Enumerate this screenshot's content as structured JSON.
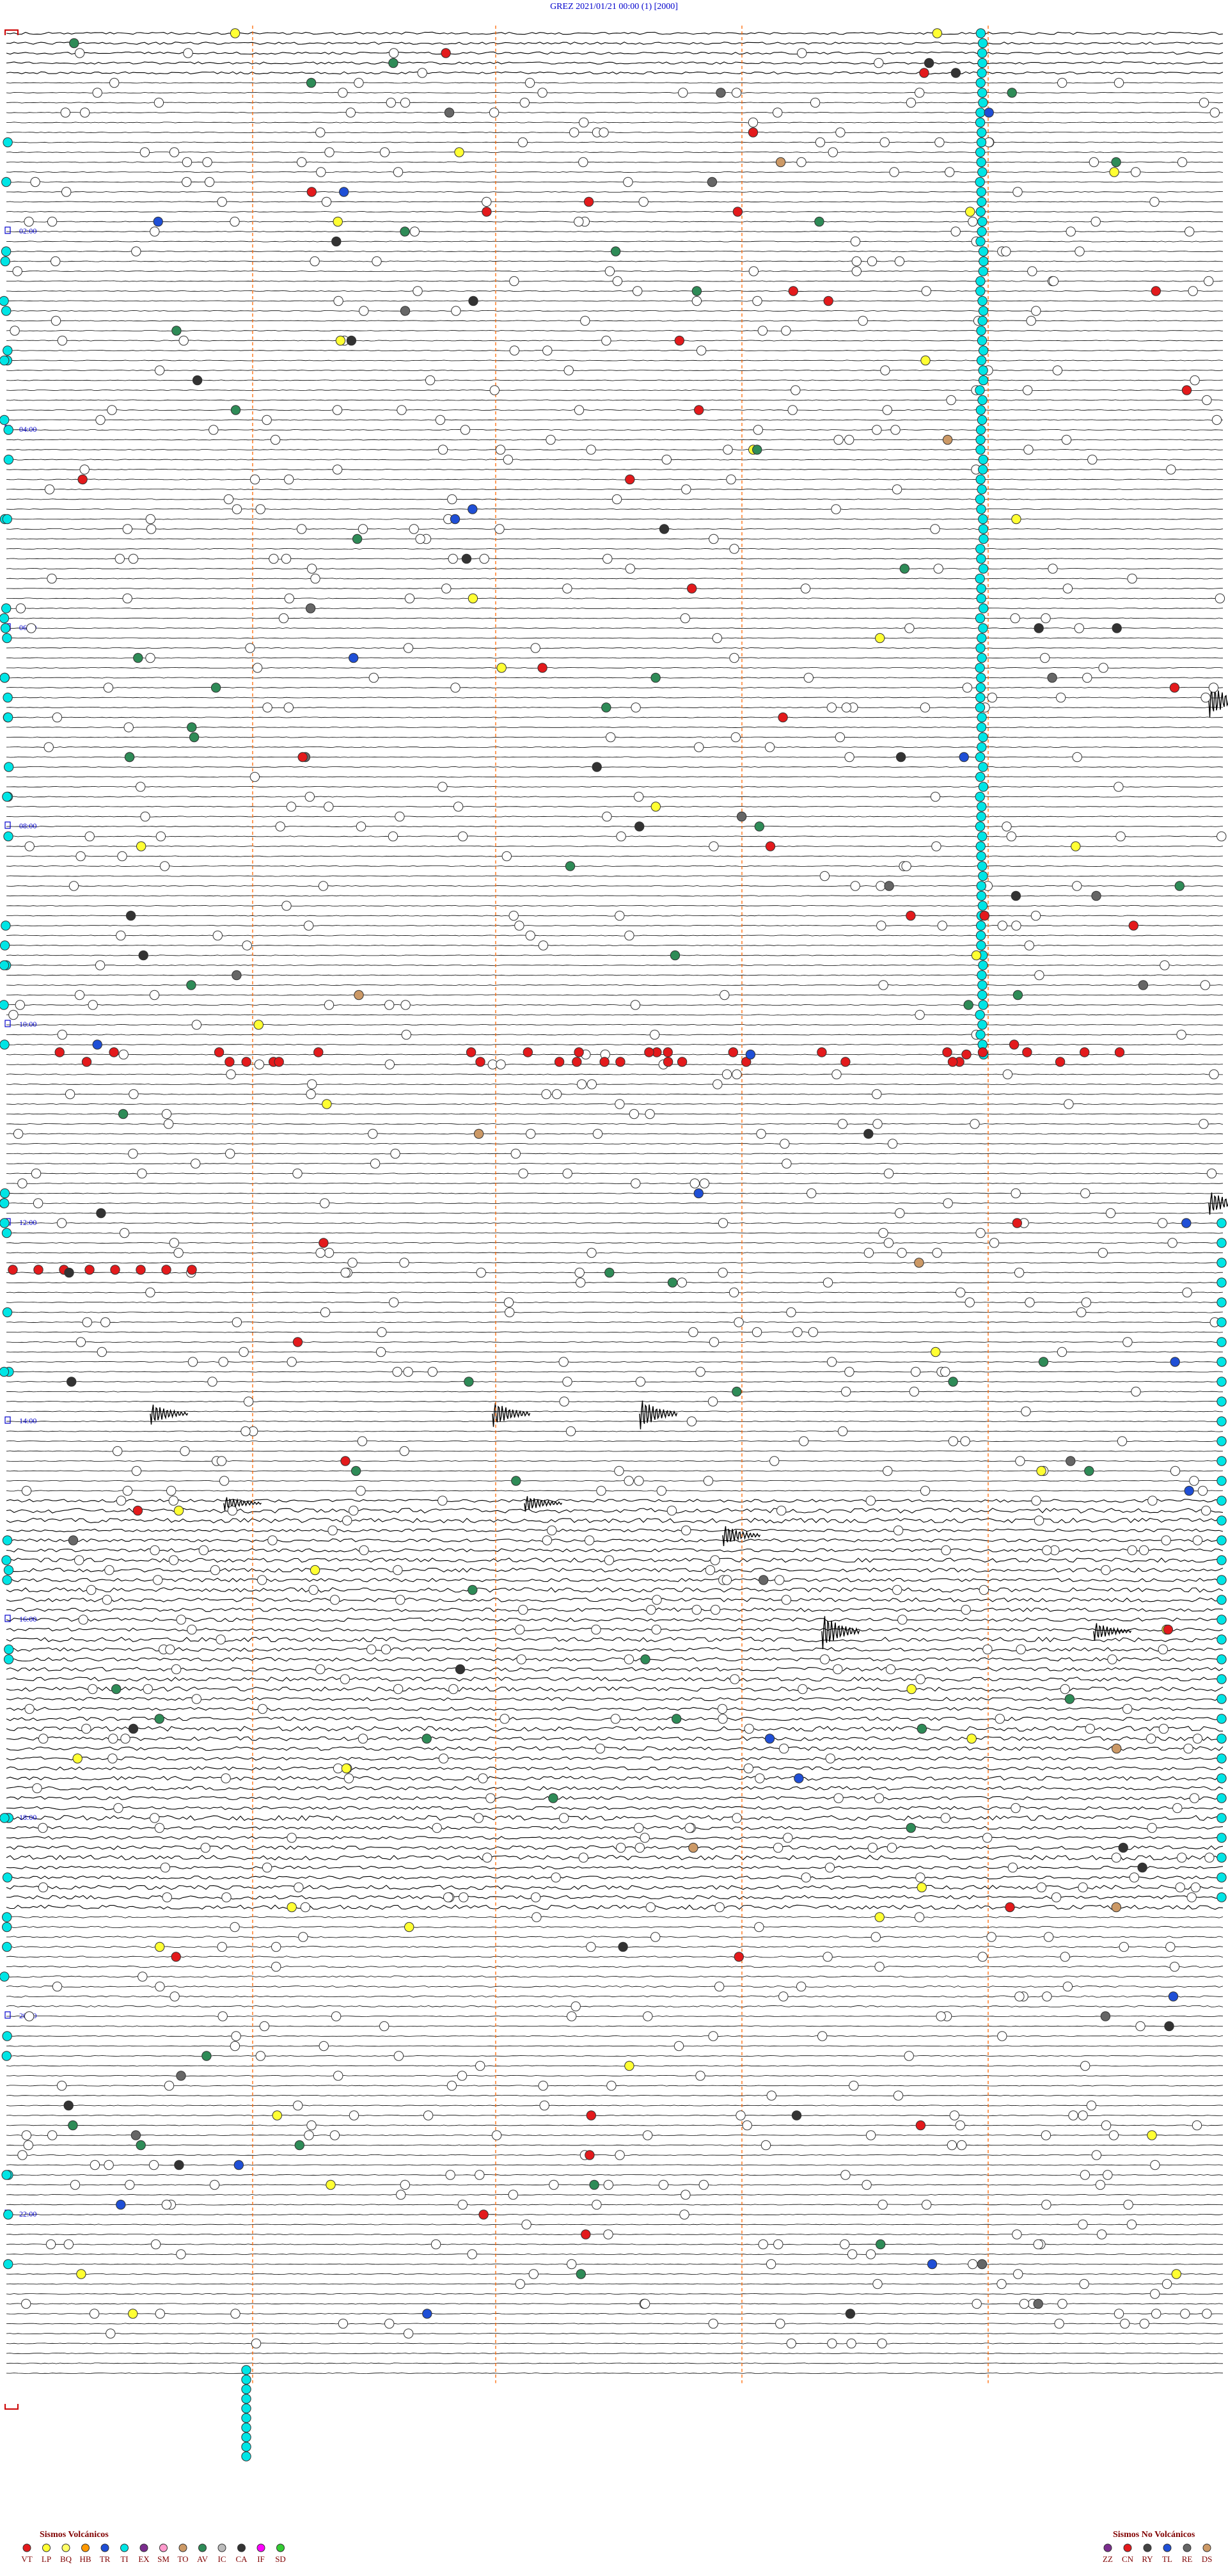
{
  "header": {
    "station": "GREZ",
    "datetime": "2021/01/21 00:00",
    "channel": "(1)",
    "gain": "[2000]"
  },
  "chart_data": {
    "type": "scatter",
    "kind": "helicorder",
    "minutes_per_line": 15,
    "time_labels": [
      "02:00",
      "04:00",
      "06:00",
      "08:00",
      "10:00",
      "12:00",
      "14:00",
      "16:00",
      "18:00",
      "20:00",
      "22:00"
    ],
    "event_types": {
      "volcanic": [
        {
          "code": "VT",
          "color": "#e31a1c"
        },
        {
          "code": "LP",
          "color": "#ffff33"
        },
        {
          "code": "BQ",
          "color": "#ffff66"
        },
        {
          "code": "HB",
          "color": "#ff9900"
        },
        {
          "code": "TR",
          "color": "#1f4fd6"
        },
        {
          "code": "TI",
          "color": "#00e5e5"
        },
        {
          "code": "EX",
          "color": "#7b2d8e"
        },
        {
          "code": "SM",
          "color": "#ff99cc"
        },
        {
          "code": "TO",
          "color": "#cc9966"
        },
        {
          "code": "AV",
          "color": "#2e8b57"
        },
        {
          "code": "IC",
          "color": "#bbbbbb"
        },
        {
          "code": "CA",
          "color": "#333333"
        },
        {
          "code": "IF",
          "color": "#ff00ff"
        },
        {
          "code": "SD",
          "color": "#33cc33"
        }
      ],
      "non_volcanic": [
        {
          "code": "ZZ",
          "color": "#7b2d8e"
        },
        {
          "code": "CN",
          "color": "#e31a1c"
        },
        {
          "code": "RY",
          "color": "#444444"
        },
        {
          "code": "TL",
          "color": "#1f4fd6"
        },
        {
          "code": "RE",
          "color": "#666666"
        },
        {
          "code": "DS",
          "color": "#cc9966"
        }
      ]
    },
    "event_counts_approx": {
      "IC": 900,
      "TI": 210,
      "VT": 75,
      "LP": 40,
      "AV": 55,
      "CA": 30,
      "TR": 20,
      "RE": 20,
      "TO": 8
    }
  },
  "legend": {
    "volcanic_title": "Sismos Volcánicos",
    "non_volcanic_title": "Sismos No Volcánicos"
  },
  "colors": {
    "trace": "#000000",
    "time_label": "#0000cc",
    "divider": "#ff6600",
    "header": "#0000cc",
    "ic_fill": "#ffffff",
    "ti_fill": "#00e5e5",
    "vt_fill": "#e31a1c",
    "lp_fill": "#ffff33",
    "av_fill": "#2e8b57"
  }
}
